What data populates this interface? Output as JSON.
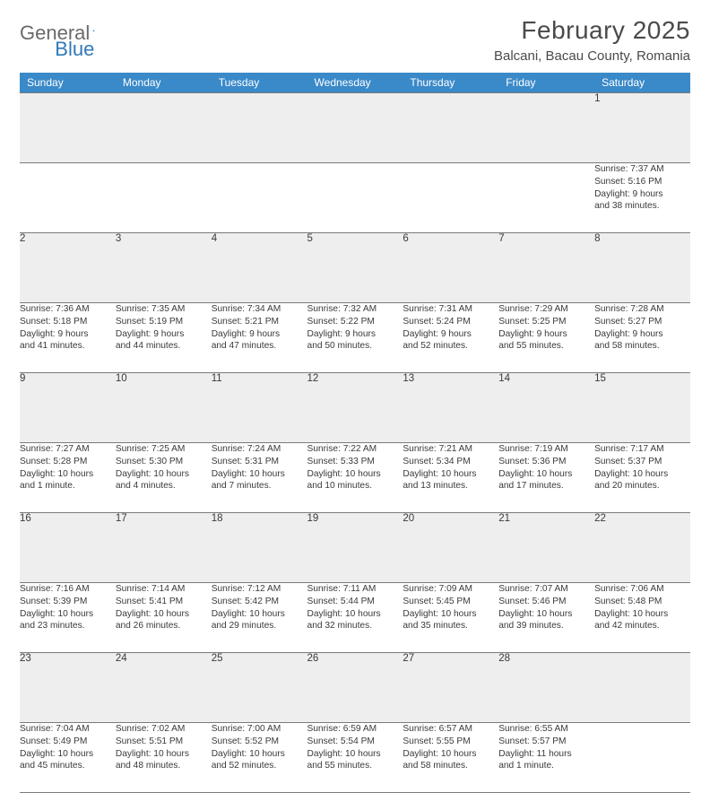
{
  "logo": {
    "text_a": "General",
    "text_b": "Blue"
  },
  "header": {
    "title": "February 2025",
    "location": "Balcani, Bacau County, Romania"
  },
  "colors": {
    "header_bg": "#3a89c9",
    "header_fg": "#ffffff",
    "daynum_bg": "#eeeeee",
    "border": "#7a7a7a",
    "text": "#3a3a3a",
    "logo_gray": "#6a6a6a",
    "logo_blue": "#2f7ab8"
  },
  "day_names": [
    "Sunday",
    "Monday",
    "Tuesday",
    "Wednesday",
    "Thursday",
    "Friday",
    "Saturday"
  ],
  "weeks": [
    {
      "nums": [
        "",
        "",
        "",
        "",
        "",
        "",
        "1"
      ],
      "cells": [
        null,
        null,
        null,
        null,
        null,
        null,
        {
          "sunrise": "Sunrise: 7:37 AM",
          "sunset": "Sunset: 5:16 PM",
          "day1": "Daylight: 9 hours",
          "day2": "and 38 minutes."
        }
      ]
    },
    {
      "nums": [
        "2",
        "3",
        "4",
        "5",
        "6",
        "7",
        "8"
      ],
      "cells": [
        {
          "sunrise": "Sunrise: 7:36 AM",
          "sunset": "Sunset: 5:18 PM",
          "day1": "Daylight: 9 hours",
          "day2": "and 41 minutes."
        },
        {
          "sunrise": "Sunrise: 7:35 AM",
          "sunset": "Sunset: 5:19 PM",
          "day1": "Daylight: 9 hours",
          "day2": "and 44 minutes."
        },
        {
          "sunrise": "Sunrise: 7:34 AM",
          "sunset": "Sunset: 5:21 PM",
          "day1": "Daylight: 9 hours",
          "day2": "and 47 minutes."
        },
        {
          "sunrise": "Sunrise: 7:32 AM",
          "sunset": "Sunset: 5:22 PM",
          "day1": "Daylight: 9 hours",
          "day2": "and 50 minutes."
        },
        {
          "sunrise": "Sunrise: 7:31 AM",
          "sunset": "Sunset: 5:24 PM",
          "day1": "Daylight: 9 hours",
          "day2": "and 52 minutes."
        },
        {
          "sunrise": "Sunrise: 7:29 AM",
          "sunset": "Sunset: 5:25 PM",
          "day1": "Daylight: 9 hours",
          "day2": "and 55 minutes."
        },
        {
          "sunrise": "Sunrise: 7:28 AM",
          "sunset": "Sunset: 5:27 PM",
          "day1": "Daylight: 9 hours",
          "day2": "and 58 minutes."
        }
      ]
    },
    {
      "nums": [
        "9",
        "10",
        "11",
        "12",
        "13",
        "14",
        "15"
      ],
      "cells": [
        {
          "sunrise": "Sunrise: 7:27 AM",
          "sunset": "Sunset: 5:28 PM",
          "day1": "Daylight: 10 hours",
          "day2": "and 1 minute."
        },
        {
          "sunrise": "Sunrise: 7:25 AM",
          "sunset": "Sunset: 5:30 PM",
          "day1": "Daylight: 10 hours",
          "day2": "and 4 minutes."
        },
        {
          "sunrise": "Sunrise: 7:24 AM",
          "sunset": "Sunset: 5:31 PM",
          "day1": "Daylight: 10 hours",
          "day2": "and 7 minutes."
        },
        {
          "sunrise": "Sunrise: 7:22 AM",
          "sunset": "Sunset: 5:33 PM",
          "day1": "Daylight: 10 hours",
          "day2": "and 10 minutes."
        },
        {
          "sunrise": "Sunrise: 7:21 AM",
          "sunset": "Sunset: 5:34 PM",
          "day1": "Daylight: 10 hours",
          "day2": "and 13 minutes."
        },
        {
          "sunrise": "Sunrise: 7:19 AM",
          "sunset": "Sunset: 5:36 PM",
          "day1": "Daylight: 10 hours",
          "day2": "and 17 minutes."
        },
        {
          "sunrise": "Sunrise: 7:17 AM",
          "sunset": "Sunset: 5:37 PM",
          "day1": "Daylight: 10 hours",
          "day2": "and 20 minutes."
        }
      ]
    },
    {
      "nums": [
        "16",
        "17",
        "18",
        "19",
        "20",
        "21",
        "22"
      ],
      "cells": [
        {
          "sunrise": "Sunrise: 7:16 AM",
          "sunset": "Sunset: 5:39 PM",
          "day1": "Daylight: 10 hours",
          "day2": "and 23 minutes."
        },
        {
          "sunrise": "Sunrise: 7:14 AM",
          "sunset": "Sunset: 5:41 PM",
          "day1": "Daylight: 10 hours",
          "day2": "and 26 minutes."
        },
        {
          "sunrise": "Sunrise: 7:12 AM",
          "sunset": "Sunset: 5:42 PM",
          "day1": "Daylight: 10 hours",
          "day2": "and 29 minutes."
        },
        {
          "sunrise": "Sunrise: 7:11 AM",
          "sunset": "Sunset: 5:44 PM",
          "day1": "Daylight: 10 hours",
          "day2": "and 32 minutes."
        },
        {
          "sunrise": "Sunrise: 7:09 AM",
          "sunset": "Sunset: 5:45 PM",
          "day1": "Daylight: 10 hours",
          "day2": "and 35 minutes."
        },
        {
          "sunrise": "Sunrise: 7:07 AM",
          "sunset": "Sunset: 5:46 PM",
          "day1": "Daylight: 10 hours",
          "day2": "and 39 minutes."
        },
        {
          "sunrise": "Sunrise: 7:06 AM",
          "sunset": "Sunset: 5:48 PM",
          "day1": "Daylight: 10 hours",
          "day2": "and 42 minutes."
        }
      ]
    },
    {
      "nums": [
        "23",
        "24",
        "25",
        "26",
        "27",
        "28",
        ""
      ],
      "cells": [
        {
          "sunrise": "Sunrise: 7:04 AM",
          "sunset": "Sunset: 5:49 PM",
          "day1": "Daylight: 10 hours",
          "day2": "and 45 minutes."
        },
        {
          "sunrise": "Sunrise: 7:02 AM",
          "sunset": "Sunset: 5:51 PM",
          "day1": "Daylight: 10 hours",
          "day2": "and 48 minutes."
        },
        {
          "sunrise": "Sunrise: 7:00 AM",
          "sunset": "Sunset: 5:52 PM",
          "day1": "Daylight: 10 hours",
          "day2": "and 52 minutes."
        },
        {
          "sunrise": "Sunrise: 6:59 AM",
          "sunset": "Sunset: 5:54 PM",
          "day1": "Daylight: 10 hours",
          "day2": "and 55 minutes."
        },
        {
          "sunrise": "Sunrise: 6:57 AM",
          "sunset": "Sunset: 5:55 PM",
          "day1": "Daylight: 10 hours",
          "day2": "and 58 minutes."
        },
        {
          "sunrise": "Sunrise: 6:55 AM",
          "sunset": "Sunset: 5:57 PM",
          "day1": "Daylight: 11 hours",
          "day2": "and 1 minute."
        },
        null
      ]
    }
  ]
}
